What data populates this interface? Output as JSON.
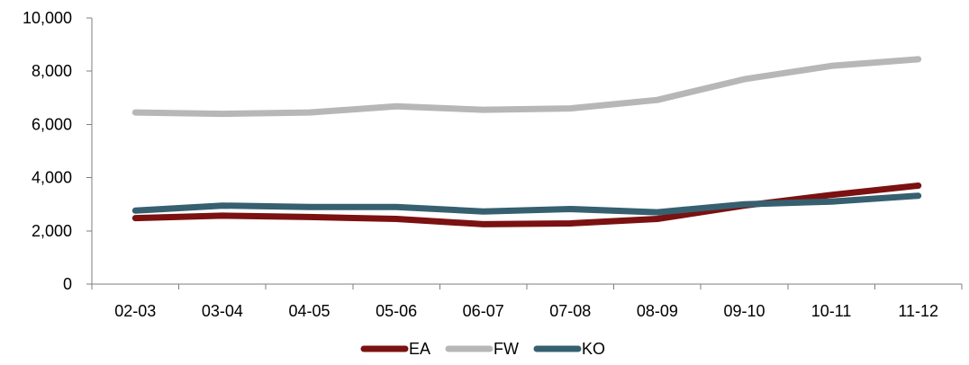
{
  "chart_data": {
    "type": "line",
    "title": "",
    "xlabel": "",
    "ylabel": "",
    "categories": [
      "02-03",
      "03-04",
      "04-05",
      "05-06",
      "06-07",
      "07-08",
      "08-09",
      "09-10",
      "10-11",
      "11-12"
    ],
    "ylim": [
      0,
      10000
    ],
    "yticks": [
      0,
      2000,
      4000,
      6000,
      8000,
      10000
    ],
    "ytick_labels": [
      "0",
      "2,000",
      "4,000",
      "6,000",
      "8,000",
      "10,000"
    ],
    "grid": false,
    "legend_position": "bottom",
    "series": [
      {
        "name": "EA",
        "color": "#7b1111",
        "values": [
          2480,
          2570,
          2520,
          2450,
          2250,
          2280,
          2450,
          2950,
          3350,
          3700
        ]
      },
      {
        "name": "FW",
        "color": "#b7b7b7",
        "values": [
          6450,
          6400,
          6450,
          6680,
          6550,
          6600,
          6920,
          7700,
          8200,
          8450
        ]
      },
      {
        "name": "KO",
        "color": "#366070",
        "values": [
          2760,
          2950,
          2900,
          2900,
          2730,
          2820,
          2700,
          3000,
          3100,
          3320
        ]
      }
    ]
  }
}
